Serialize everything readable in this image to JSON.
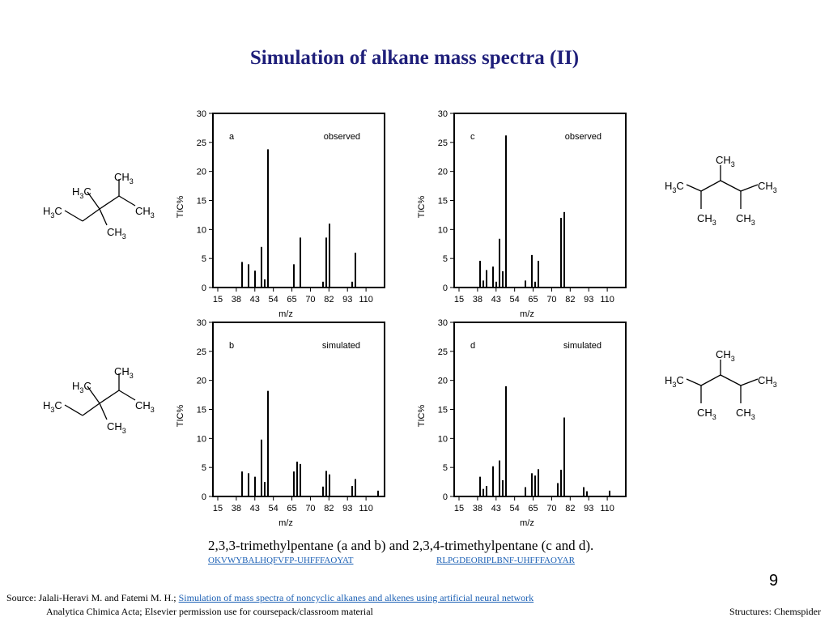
{
  "slide": {
    "title": "Simulation of  alkane mass spectra (II)",
    "caption": "2,3,3-trimethylpentane (a and b) and 2,3,4-trimethylpentane (c and d).",
    "inchikey_left": "OKVWYBALHQFVFP-UHFFFAOYAT",
    "inchikey_right": "RLPGDEORIPLBNF-UHFFFAOYAR",
    "page_number": "9",
    "source_prefix": "Source: Jalali-Heravi M. and Fatemi M. H.; ",
    "source_link": "Simulation of mass spectra of noncyclic alkanes and alkenes using artificial neural network",
    "source_line2": "Analytica Chimica Acta; Elsevier permission use for coursepack/classroom material",
    "structures_credit": "Structures: Chemspider"
  },
  "molecules": {
    "labels": {
      "ch3": "CH",
      "h3c": "H",
      "c": "C",
      "sub3": "3"
    }
  },
  "chart_data": [
    {
      "type": "bar",
      "panel": "a",
      "annotation": "observed",
      "xlabel": "m/z",
      "ylabel": "TIC%",
      "ylim": [
        0,
        30
      ],
      "yticks": [
        0,
        5,
        10,
        15,
        20,
        25,
        30
      ],
      "xtick_labels": [
        "15",
        "38",
        "43",
        "54",
        "65",
        "70",
        "82",
        "93",
        "110"
      ],
      "bars": [
        [
          18,
          4.4
        ],
        [
          22,
          4.0
        ],
        [
          26,
          2.9
        ],
        [
          30,
          7.0
        ],
        [
          32,
          1.4
        ],
        [
          34,
          23.8
        ],
        [
          50,
          4.0
        ],
        [
          54,
          8.6
        ],
        [
          68,
          1.0
        ],
        [
          70,
          8.6
        ],
        [
          72,
          11.0
        ],
        [
          86,
          1.0
        ],
        [
          88,
          6.0
        ]
      ]
    },
    {
      "type": "bar",
      "panel": "b",
      "annotation": "simulated",
      "xlabel": "m/z",
      "ylabel": "TIC%",
      "ylim": [
        0,
        30
      ],
      "yticks": [
        0,
        5,
        10,
        15,
        20,
        25,
        30
      ],
      "xtick_labels": [
        "15",
        "38",
        "43",
        "54",
        "65",
        "70",
        "82",
        "93",
        "110"
      ],
      "bars": [
        [
          18,
          4.3
        ],
        [
          22,
          4.0
        ],
        [
          26,
          3.4
        ],
        [
          30,
          9.8
        ],
        [
          32,
          2.5
        ],
        [
          34,
          18.2
        ],
        [
          50,
          4.3
        ],
        [
          52,
          6.0
        ],
        [
          54,
          5.6
        ],
        [
          68,
          1.7
        ],
        [
          70,
          4.4
        ],
        [
          72,
          3.8
        ],
        [
          86,
          1.8
        ],
        [
          88,
          3.0
        ],
        [
          102,
          1.0
        ]
      ]
    },
    {
      "type": "bar",
      "panel": "c",
      "annotation": "observed",
      "xlabel": "m/z",
      "ylabel": "TIC%",
      "ylim": [
        0,
        30
      ],
      "yticks": [
        0,
        5,
        10,
        15,
        20,
        25,
        30
      ],
      "xtick_labels": [
        "15",
        "38",
        "43",
        "54",
        "65",
        "70",
        "82",
        "93",
        "110"
      ],
      "bars": [
        [
          16,
          4.6
        ],
        [
          18,
          1.2
        ],
        [
          20,
          3.0
        ],
        [
          24,
          3.6
        ],
        [
          26,
          1.0
        ],
        [
          28,
          8.4
        ],
        [
          30,
          2.8
        ],
        [
          32,
          26.2
        ],
        [
          44,
          1.2
        ],
        [
          48,
          5.6
        ],
        [
          50,
          1.0
        ],
        [
          52,
          4.6
        ],
        [
          66,
          12.0
        ],
        [
          68,
          13.0
        ]
      ]
    },
    {
      "type": "bar",
      "panel": "d",
      "annotation": "simulated",
      "xlabel": "m/z",
      "ylabel": "TIC%",
      "ylim": [
        0,
        30
      ],
      "yticks": [
        0,
        5,
        10,
        15,
        20,
        25,
        30
      ],
      "xtick_labels": [
        "15",
        "38",
        "43",
        "54",
        "65",
        "70",
        "82",
        "93",
        "110"
      ],
      "bars": [
        [
          16,
          3.4
        ],
        [
          18,
          1.3
        ],
        [
          20,
          1.8
        ],
        [
          24,
          5.2
        ],
        [
          28,
          6.2
        ],
        [
          30,
          2.8
        ],
        [
          32,
          19.0
        ],
        [
          44,
          1.6
        ],
        [
          48,
          4.0
        ],
        [
          50,
          3.6
        ],
        [
          52,
          4.7
        ],
        [
          64,
          2.3
        ],
        [
          66,
          4.6
        ],
        [
          68,
          13.6
        ],
        [
          80,
          1.6
        ],
        [
          82,
          0.9
        ],
        [
          96,
          1.0
        ]
      ]
    }
  ]
}
